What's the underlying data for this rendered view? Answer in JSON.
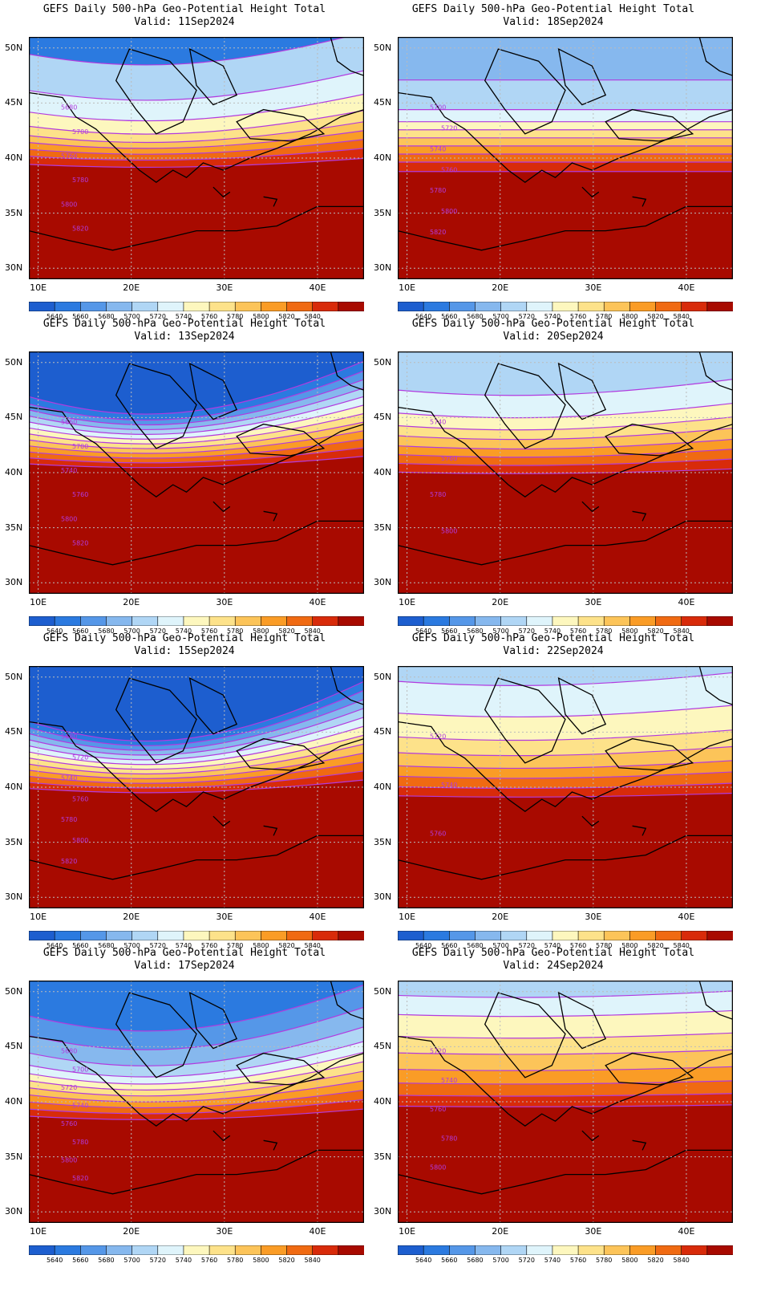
{
  "title_line1": "GEFS Daily 500-hPa Geo-Potential Height Total",
  "valid_prefix": "Valid: ",
  "lat_ticks": [
    "30N",
    "35N",
    "40N",
    "45N",
    "50N"
  ],
  "lon_ticks": [
    "10E",
    "20E",
    "30E",
    "40E"
  ],
  "colorbar_labels": [
    "5640",
    "5660",
    "5680",
    "5700",
    "5720",
    "5740",
    "5760",
    "5780",
    "5800",
    "5820",
    "5840"
  ],
  "colors": [
    "#1d5ecf",
    "#2b7ae0",
    "#5597e8",
    "#86b8ee",
    "#b0d6f5",
    "#dff4fb",
    "#fdf7be",
    "#fde28a",
    "#fcc459",
    "#fa9c26",
    "#f06a12",
    "#d82b0a",
    "#a80a00"
  ],
  "contour_color": "#b23adf",
  "panels": [
    {
      "valid": "11Sep2024",
      "cols": [
        1,
        4,
        5,
        6,
        7,
        8,
        9,
        10,
        11,
        12
      ],
      "w": [
        0.1,
        0.3,
        0.18,
        0.12,
        0.08,
        0.06,
        0.06,
        0.06,
        0.07,
        0.95
      ],
      "labels": [
        "5680",
        "5700",
        "5760",
        "5780",
        "5800",
        "5820"
      ]
    },
    {
      "valid": "18Sep2024",
      "cols": [
        3,
        4,
        5,
        6,
        7,
        8,
        9,
        10,
        11,
        12
      ],
      "w": [
        0.32,
        0.22,
        0.09,
        0.06,
        0.06,
        0.06,
        0.06,
        0.06,
        0.07,
        0.8
      ],
      "labels": [
        "5700",
        "5720",
        "5740",
        "5760",
        "5780",
        "5800",
        "5820"
      ]
    },
    {
      "valid": "13Sep2024",
      "cols": [
        0,
        1,
        2,
        3,
        4,
        5,
        6,
        7,
        8,
        9,
        10,
        11,
        12
      ],
      "w": [
        0.28,
        0.06,
        0.05,
        0.05,
        0.05,
        0.05,
        0.05,
        0.05,
        0.05,
        0.05,
        0.05,
        0.05,
        1.0
      ],
      "labels": [
        "5660",
        "5700",
        "5740",
        "5760",
        "5800",
        "5820"
      ]
    },
    {
      "valid": "20Sep2024",
      "cols": [
        4,
        5,
        6,
        7,
        8,
        9,
        10,
        11,
        12
      ],
      "w": [
        0.28,
        0.18,
        0.1,
        0.08,
        0.08,
        0.07,
        0.07,
        0.07,
        0.95
      ],
      "labels": [
        "5740",
        "5760",
        "5780",
        "5800"
      ]
    },
    {
      "valid": "15Sep2024",
      "cols": [
        0,
        1,
        2,
        3,
        4,
        5,
        6,
        7,
        8,
        9,
        10,
        11,
        12
      ],
      "w": [
        0.34,
        0.05,
        0.05,
        0.05,
        0.05,
        0.05,
        0.05,
        0.05,
        0.05,
        0.05,
        0.05,
        0.05,
        0.9
      ],
      "labels": [
        "5680",
        "5720",
        "5740",
        "5760",
        "5780",
        "5800",
        "5820"
      ]
    },
    {
      "valid": "22Sep2024",
      "cols": [
        4,
        5,
        6,
        7,
        8,
        9,
        10,
        11,
        12
      ],
      "w": [
        0.1,
        0.24,
        0.18,
        0.12,
        0.1,
        0.08,
        0.08,
        0.07,
        0.85
      ],
      "labels": [
        "5720",
        "5740",
        "5760"
      ]
    },
    {
      "valid": "17Sep2024",
      "cols": [
        1,
        2,
        3,
        4,
        5,
        6,
        7,
        8,
        9,
        10,
        11,
        12
      ],
      "w": [
        0.22,
        0.16,
        0.14,
        0.1,
        0.07,
        0.06,
        0.06,
        0.06,
        0.06,
        0.06,
        0.06,
        0.85
      ],
      "labels": [
        "5680",
        "5700",
        "5720",
        "5740",
        "5760",
        "5780",
        "5800",
        "5820"
      ]
    },
    {
      "valid": "24Sep2024",
      "cols": [
        4,
        5,
        6,
        7,
        8,
        9,
        10,
        11,
        12
      ],
      "w": [
        0.1,
        0.14,
        0.16,
        0.12,
        0.12,
        0.1,
        0.09,
        0.08,
        0.85
      ],
      "labels": [
        "5720",
        "5740",
        "5760",
        "5780",
        "5800"
      ]
    }
  ]
}
